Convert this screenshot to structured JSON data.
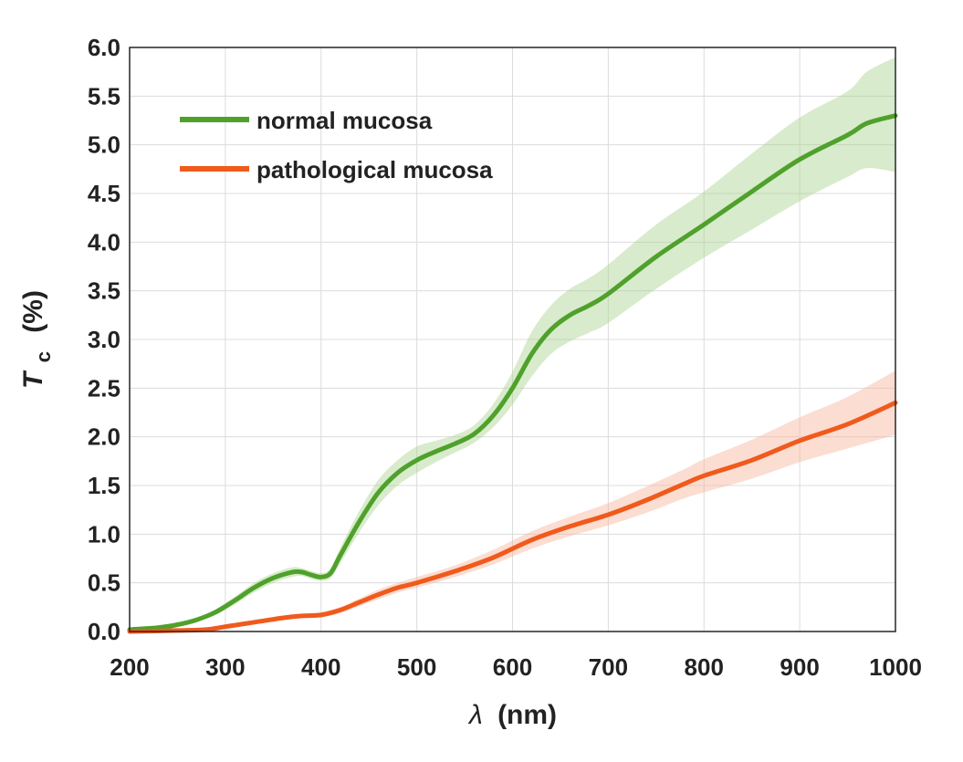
{
  "chart_data": {
    "type": "line",
    "xlabel_symbol": "λ",
    "xlabel_unit": "(nm)",
    "ylabel_symbol": "T",
    "ylabel_subscript": "c",
    "ylabel_unit": "(%)",
    "xlim": [
      200,
      1000
    ],
    "ylim": [
      0,
      6
    ],
    "xticks": [
      200,
      300,
      400,
      500,
      600,
      700,
      800,
      900,
      1000
    ],
    "yticks": [
      "0.0",
      "0.5",
      "1.0",
      "1.5",
      "2.0",
      "2.5",
      "3.0",
      "3.5",
      "4.0",
      "4.5",
      "5.0",
      "5.5",
      "6.0"
    ],
    "grid": true,
    "legend_position": "top-left",
    "series": [
      {
        "name": "normal mucosa",
        "color": "#4fa12b",
        "band_color": "#a9d28f",
        "x": [
          200,
          230,
          250,
          270,
          290,
          310,
          330,
          350,
          370,
          380,
          390,
          400,
          410,
          420,
          440,
          460,
          480,
          500,
          520,
          540,
          560,
          580,
          600,
          620,
          640,
          660,
          680,
          700,
          750,
          800,
          850,
          900,
          950,
          970,
          1000
        ],
        "y": [
          0.02,
          0.04,
          0.07,
          0.12,
          0.2,
          0.32,
          0.45,
          0.55,
          0.61,
          0.61,
          0.58,
          0.56,
          0.6,
          0.78,
          1.13,
          1.43,
          1.63,
          1.76,
          1.85,
          1.93,
          2.03,
          2.22,
          2.5,
          2.85,
          3.1,
          3.25,
          3.35,
          3.47,
          3.85,
          4.18,
          4.52,
          4.85,
          5.1,
          5.22,
          5.3
        ],
        "lower": [
          0.0,
          0.02,
          0.05,
          0.1,
          0.17,
          0.28,
          0.4,
          0.5,
          0.56,
          0.57,
          0.54,
          0.52,
          0.55,
          0.7,
          1.02,
          1.3,
          1.5,
          1.63,
          1.74,
          1.84,
          1.94,
          2.1,
          2.33,
          2.62,
          2.85,
          2.98,
          3.07,
          3.17,
          3.52,
          3.84,
          4.13,
          4.42,
          4.67,
          4.76,
          4.72
        ],
        "upper": [
          0.04,
          0.06,
          0.09,
          0.14,
          0.23,
          0.36,
          0.5,
          0.6,
          0.66,
          0.65,
          0.62,
          0.6,
          0.65,
          0.86,
          1.24,
          1.56,
          1.76,
          1.9,
          1.96,
          2.02,
          2.12,
          2.34,
          2.67,
          3.08,
          3.35,
          3.52,
          3.63,
          3.77,
          4.18,
          4.52,
          4.91,
          5.28,
          5.55,
          5.75,
          5.9
        ]
      },
      {
        "name": "pathological mucosa",
        "color": "#f05a1c",
        "band_color": "#f7b39c",
        "x": [
          200,
          250,
          280,
          300,
          320,
          340,
          360,
          380,
          400,
          420,
          440,
          460,
          480,
          500,
          540,
          580,
          620,
          660,
          700,
          740,
          780,
          800,
          850,
          900,
          950,
          1000
        ],
        "y": [
          0.0,
          0.01,
          0.02,
          0.05,
          0.08,
          0.11,
          0.14,
          0.16,
          0.17,
          0.22,
          0.3,
          0.38,
          0.45,
          0.5,
          0.62,
          0.76,
          0.94,
          1.08,
          1.2,
          1.35,
          1.52,
          1.6,
          1.76,
          1.96,
          2.13,
          2.35
        ],
        "lower": [
          0.0,
          0.0,
          0.01,
          0.03,
          0.06,
          0.09,
          0.12,
          0.14,
          0.15,
          0.19,
          0.26,
          0.33,
          0.4,
          0.45,
          0.56,
          0.69,
          0.85,
          0.98,
          1.09,
          1.22,
          1.37,
          1.43,
          1.57,
          1.74,
          1.88,
          2.02
        ],
        "upper": [
          0.01,
          0.02,
          0.03,
          0.07,
          0.1,
          0.13,
          0.16,
          0.18,
          0.2,
          0.25,
          0.34,
          0.43,
          0.5,
          0.56,
          0.68,
          0.84,
          1.03,
          1.18,
          1.32,
          1.49,
          1.67,
          1.77,
          1.97,
          2.2,
          2.41,
          2.68
        ]
      }
    ]
  }
}
